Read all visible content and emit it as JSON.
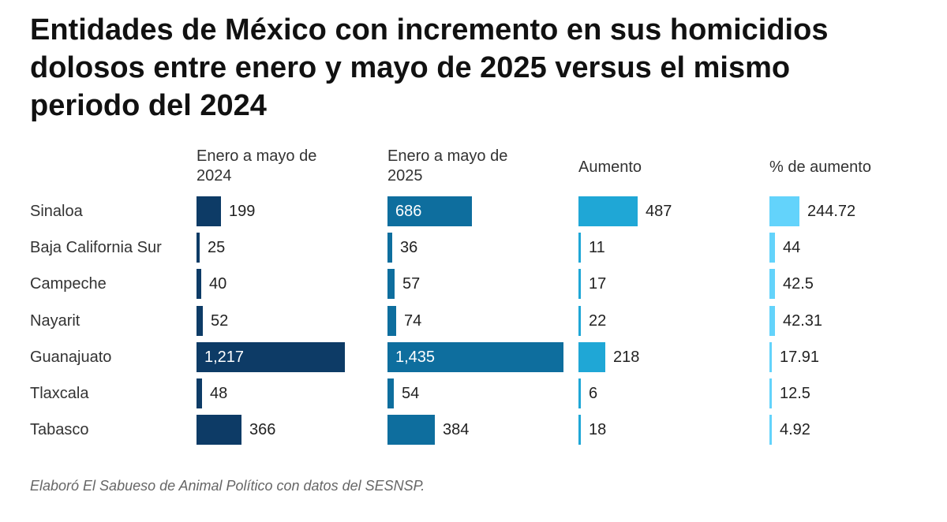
{
  "title": "Entidades de México con incremento en sus homicidios dolosos entre enero y mayo de 2025 versus el mismo periodo del 2024",
  "footer": "Elaboró El Sabueso de Animal Político con datos del SESNSP.",
  "colors": {
    "c2024": "#0d3b66",
    "c2025": "#0e6e9e",
    "aumento": "#1fa7d6",
    "pct": "#63d3fb"
  },
  "chart_data": {
    "type": "table",
    "title": "Entidades de México con incremento en sus homicidios dolosos entre enero y mayo de 2025 versus el mismo periodo del 2024",
    "columns": [
      {
        "key": "c2024",
        "label_lines": [
          "Enero a mayo de",
          "2024"
        ]
      },
      {
        "key": "c2025",
        "label_lines": [
          "Enero a mayo de",
          "2025"
        ]
      },
      {
        "key": "aumento",
        "label_lines": [
          "Aumento"
        ]
      },
      {
        "key": "pct",
        "label_lines": [
          "% de aumento"
        ]
      }
    ],
    "rows": [
      {
        "state": "Sinaloa",
        "c2024": 199,
        "c2025": 686,
        "aumento": 487,
        "pct": 244.72,
        "labels": {
          "c2024": "199",
          "c2025": "686",
          "aumento": "487",
          "pct": "244.72"
        }
      },
      {
        "state": "Baja California Sur",
        "c2024": 25,
        "c2025": 36,
        "aumento": 11,
        "pct": 44,
        "labels": {
          "c2024": "25",
          "c2025": "36",
          "aumento": "11",
          "pct": "44"
        }
      },
      {
        "state": "Campeche",
        "c2024": 40,
        "c2025": 57,
        "aumento": 17,
        "pct": 42.5,
        "labels": {
          "c2024": "40",
          "c2025": "57",
          "aumento": "17",
          "pct": "42.5"
        }
      },
      {
        "state": "Nayarit",
        "c2024": 52,
        "c2025": 74,
        "aumento": 22,
        "pct": 42.31,
        "labels": {
          "c2024": "52",
          "c2025": "74",
          "aumento": "22",
          "pct": "42.31"
        }
      },
      {
        "state": "Guanajuato",
        "c2024": 1217,
        "c2025": 1435,
        "aumento": 218,
        "pct": 17.91,
        "labels": {
          "c2024": "1,217",
          "c2025": "1,435",
          "aumento": "218",
          "pct": "17.91"
        }
      },
      {
        "state": "Tlaxcala",
        "c2024": 48,
        "c2025": 54,
        "aumento": 6,
        "pct": 12.5,
        "labels": {
          "c2024": "48",
          "c2025": "54",
          "aumento": "6",
          "pct": "12.5"
        }
      },
      {
        "state": "Tabasco",
        "c2024": 366,
        "c2025": 384,
        "aumento": 18,
        "pct": 4.92,
        "labels": {
          "c2024": "366",
          "c2025": "384",
          "aumento": "18",
          "pct": "4.92"
        }
      }
    ]
  }
}
